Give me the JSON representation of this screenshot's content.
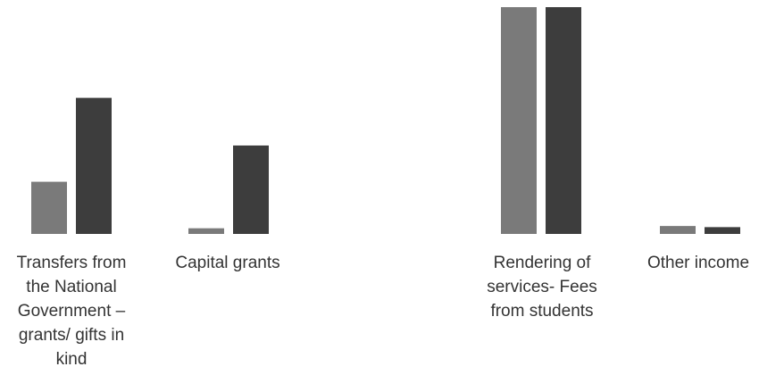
{
  "chart_data": {
    "type": "bar",
    "title": "",
    "xlabel": "",
    "ylabel": "",
    "ylim": [
      0,
      100
    ],
    "grid": false,
    "legend": "none",
    "categories": [
      [
        "Transfers from",
        "the National",
        "Government –",
        "grants/ gifts in",
        "kind"
      ],
      [
        "Capital grants"
      ],
      [
        "Rendering of",
        "services- Fees",
        "from students"
      ],
      [
        "Other income"
      ]
    ],
    "series": [
      {
        "color": "#7a7a7a",
        "values": [
          23,
          2.5,
          100,
          3.5
        ]
      },
      {
        "color": "#3d3d3d",
        "values": [
          60,
          39,
          100,
          3
        ]
      }
    ]
  }
}
